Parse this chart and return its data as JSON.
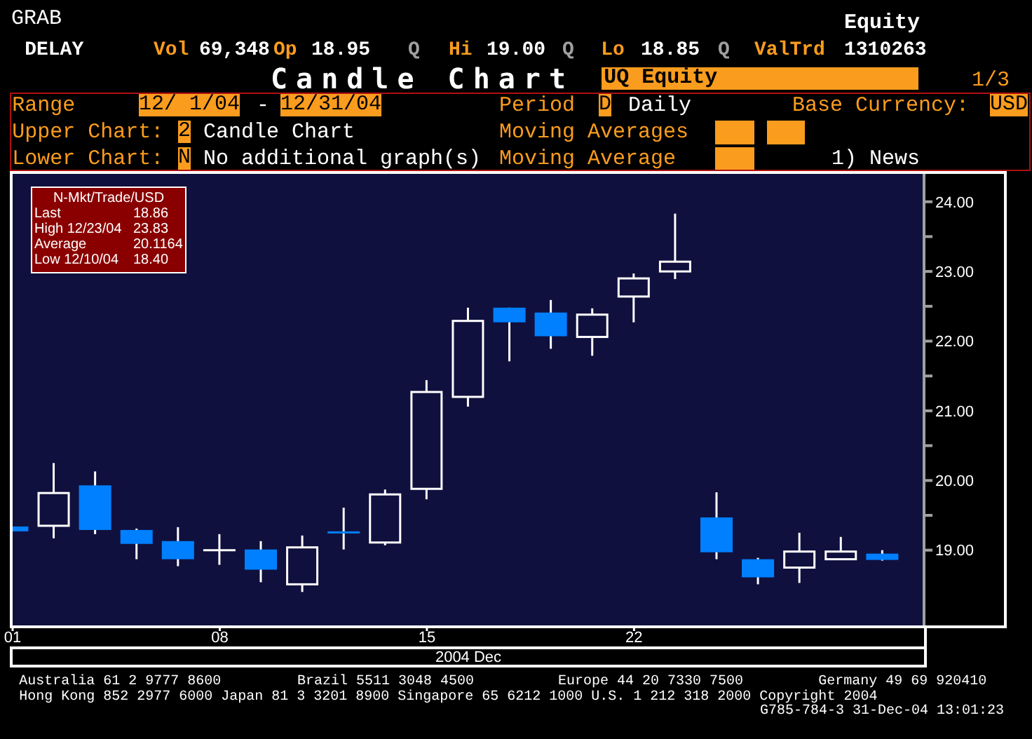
{
  "chart_data": {
    "type": "candlestick",
    "title": "Candle Chart",
    "xlabel": "2004 Dec",
    "categories": [
      "01",
      null,
      null,
      null,
      null,
      "08",
      null,
      null,
      null,
      null,
      "15",
      null,
      null,
      null,
      null,
      "22",
      null,
      null,
      null,
      null,
      null,
      null
    ],
    "ohlc": [
      [
        19.34,
        19.34,
        19.27,
        19.27
      ],
      [
        19.35,
        20.25,
        19.17,
        19.82
      ],
      [
        19.93,
        20.13,
        19.23,
        19.29
      ],
      [
        19.29,
        19.31,
        18.87,
        19.09
      ],
      [
        19.13,
        19.33,
        18.77,
        18.87
      ],
      [
        19.0,
        19.23,
        18.79,
        19.0
      ],
      [
        19.01,
        19.13,
        18.54,
        18.72
      ],
      [
        18.51,
        19.21,
        18.4,
        19.04
      ],
      [
        19.27,
        19.61,
        19.01,
        19.24
      ],
      [
        19.11,
        19.87,
        19.07,
        19.8
      ],
      [
        19.88,
        21.44,
        19.73,
        21.27
      ],
      [
        21.2,
        22.48,
        21.06,
        22.29
      ],
      [
        22.48,
        22.48,
        21.71,
        22.27
      ],
      [
        22.41,
        22.59,
        21.89,
        22.07
      ],
      [
        22.06,
        22.47,
        21.79,
        22.38
      ],
      [
        22.64,
        22.97,
        22.27,
        22.9
      ],
      [
        23.0,
        23.83,
        22.89,
        23.14
      ],
      [
        19.47,
        19.83,
        18.87,
        18.97
      ],
      [
        18.87,
        18.89,
        18.51,
        18.61
      ],
      [
        18.75,
        19.25,
        18.53,
        18.98
      ],
      [
        18.87,
        19.19,
        18.87,
        18.98
      ],
      [
        18.95,
        19.0,
        18.85,
        18.86
      ]
    ],
    "colors": [
      "#0080ff",
      "#ffffff",
      "#0080ff",
      "#0080ff",
      "#0080ff",
      "#ffffff",
      "#0080ff",
      "#ffffff",
      "#0080ff",
      "#ffffff",
      "#ffffff",
      "#ffffff",
      "#0080ff",
      "#0080ff",
      "#ffffff",
      "#ffffff",
      "#ffffff",
      "#0080ff",
      "#0080ff",
      "#ffffff",
      "#ffffff",
      "#0080ff"
    ],
    "ylim": [
      17.9,
      24.4
    ],
    "yticks": [
      {
        "value": 19,
        "label": "19.00"
      },
      {
        "value": 19.5,
        "label": null
      },
      {
        "value": 20,
        "label": "20.00"
      },
      {
        "value": 20.5,
        "label": null
      },
      {
        "value": 21,
        "label": "21.00"
      },
      {
        "value": 21.5,
        "label": null
      },
      {
        "value": 22,
        "label": "22.00"
      },
      {
        "value": 22.5,
        "label": null
      },
      {
        "value": 23,
        "label": "23.00"
      },
      {
        "value": 23.5,
        "label": null
      },
      {
        "value": 24,
        "label": "24.00"
      }
    ],
    "annotations": [
      "GRAB",
      "Equity",
      "DELAY",
      "Vol",
      "69,348",
      "Op",
      "18.95",
      "Q",
      "Hi",
      "19.00",
      "Q",
      "Lo",
      "18.85",
      "Q",
      "ValTrd",
      "1310263",
      "UQ Equity",
      "1/3",
      "Range",
      "12/ 1/04",
      "-",
      "12/31/04",
      "Period",
      "D",
      "Daily",
      "Base Currency:",
      "USD",
      "Upper Chart:",
      "2",
      "Candle Chart",
      "Moving Averages",
      "Lower Chart:",
      "N",
      "No additional graph(s)",
      "Moving Average",
      "1) News",
      "N-Mkt/Trade/USD",
      "Last",
      "18.86",
      "High 12/23/04",
      "23.83",
      "Average",
      "20.1164",
      "Low 12/10/04",
      "18.40",
      "Australia 61 2 9777 8600",
      "Brazil 5511 3048 4500",
      "Europe 44 20 7330 7500",
      "Germany 49 69 920410",
      "Hong Kong 852 2977 6000 Japan 81 3 3201 8900 Singapore 65 6212 1000 U.S. 1 212 318 2000 Copyright 2004",
      "G785-784-3 31-Dec-04 13:01:23"
    ]
  }
}
